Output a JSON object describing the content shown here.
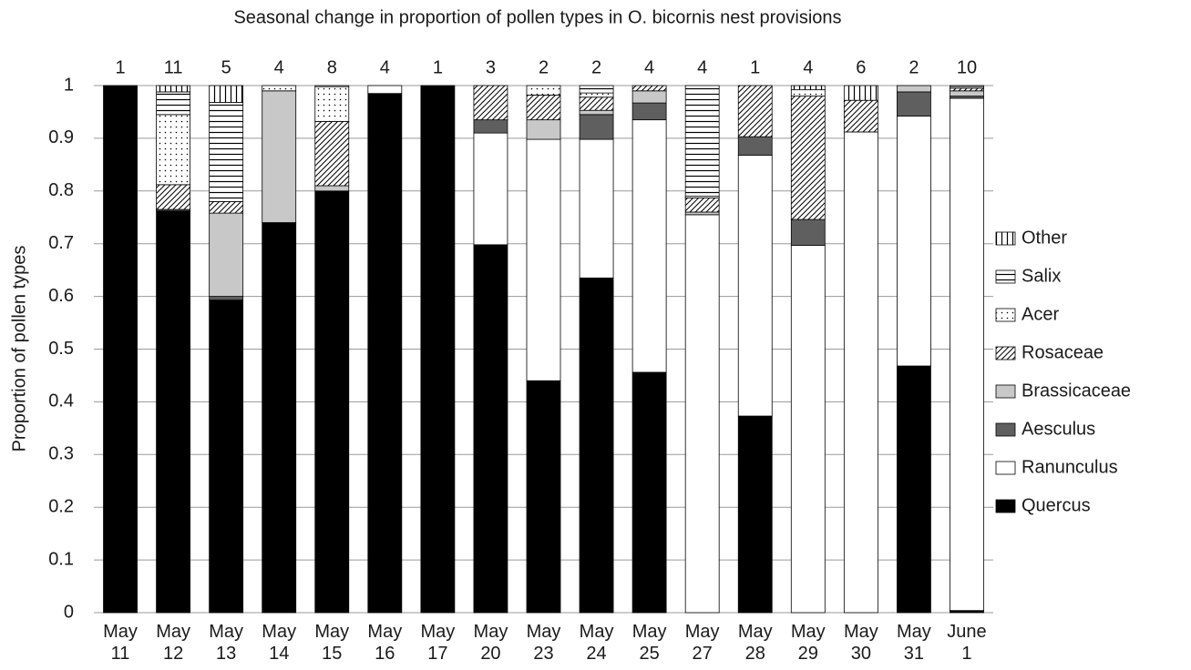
{
  "chart_data": {
    "type": "stacked_bar",
    "title": "Seasonal change in proportion of pollen types in O. bicornis nest provisions",
    "y_label": "Proportion of pollen types",
    "categories": [
      "May 11",
      "May 12",
      "May 13",
      "May 14",
      "May 15",
      "May 16",
      "May 17",
      "May 20",
      "May 23",
      "May 24",
      "May 25",
      "May 27",
      "May 28",
      "May 29",
      "May 30",
      "May 31",
      "June 1"
    ],
    "annotations": [
      1,
      11,
      5,
      4,
      8,
      4,
      1,
      3,
      2,
      2,
      4,
      4,
      1,
      4,
      6,
      2,
      10
    ],
    "ylim": [
      0,
      1
    ],
    "yticks": [
      0,
      0.1,
      0.2,
      0.3,
      0.4,
      0.5,
      0.6,
      0.7,
      0.8,
      0.9,
      1
    ],
    "grid": true,
    "legend": "right",
    "series": [
      {
        "name": "Quercus",
        "color": "#000000",
        "pattern": "solid",
        "values": [
          1,
          0.762,
          0.593,
          0.74,
          0.8,
          0.985,
          1,
          0.698,
          0.44,
          0.635,
          0.456,
          0,
          0.373,
          0,
          0,
          0.468,
          0.004
        ]
      },
      {
        "name": "Ranunculus",
        "color": "#ffffff",
        "pattern": "solid",
        "values": [
          0,
          0,
          0,
          0,
          0,
          0.015,
          0,
          0.212,
          0.458,
          0.263,
          0.479,
          0.755,
          0.495,
          0.697,
          0.912,
          0.474,
          0.972
        ]
      },
      {
        "name": "Aesculus",
        "color": "#5f5f5f",
        "pattern": "solid",
        "values": [
          0,
          0.003,
          0.007,
          0,
          0,
          0,
          0,
          0.025,
          0,
          0.047,
          0.032,
          0,
          0.035,
          0.049,
          0,
          0.046,
          0.004
        ]
      },
      {
        "name": "Brassicaceae",
        "color": "#c8c8c8",
        "pattern": "solid",
        "values": [
          0,
          0,
          0.158,
          0.25,
          0.01,
          0,
          0,
          0,
          0.037,
          0.008,
          0.023,
          0.005,
          0,
          0,
          0,
          0.012,
          0.01
        ]
      },
      {
        "name": "Rosaceae",
        "color": "#000000",
        "pattern": "diagonal",
        "values": [
          0,
          0.047,
          0.022,
          0,
          0.122,
          0,
          0,
          0.065,
          0.047,
          0.025,
          0.01,
          0.027,
          0.097,
          0.234,
          0.06,
          0,
          0.005
        ]
      },
      {
        "name": "Acer",
        "color": "#000000",
        "pattern": "dots",
        "values": [
          0,
          0.133,
          0,
          0.01,
          0.066,
          0,
          0,
          0,
          0.018,
          0.008,
          0,
          0.003,
          0,
          0.012,
          0,
          0,
          0.003
        ]
      },
      {
        "name": "Salix",
        "color": "#000000",
        "pattern": "horizontal",
        "values": [
          0,
          0.043,
          0.188,
          0,
          0.002,
          0,
          0,
          0,
          0,
          0.014,
          0,
          0.21,
          0,
          0,
          0,
          0,
          0.002
        ]
      },
      {
        "name": "Other",
        "color": "#000000",
        "pattern": "vertical",
        "values": [
          0,
          0.012,
          0.032,
          0,
          0,
          0,
          0,
          0,
          0,
          0,
          0,
          0,
          0,
          0.008,
          0.028,
          0,
          0
        ]
      }
    ]
  }
}
